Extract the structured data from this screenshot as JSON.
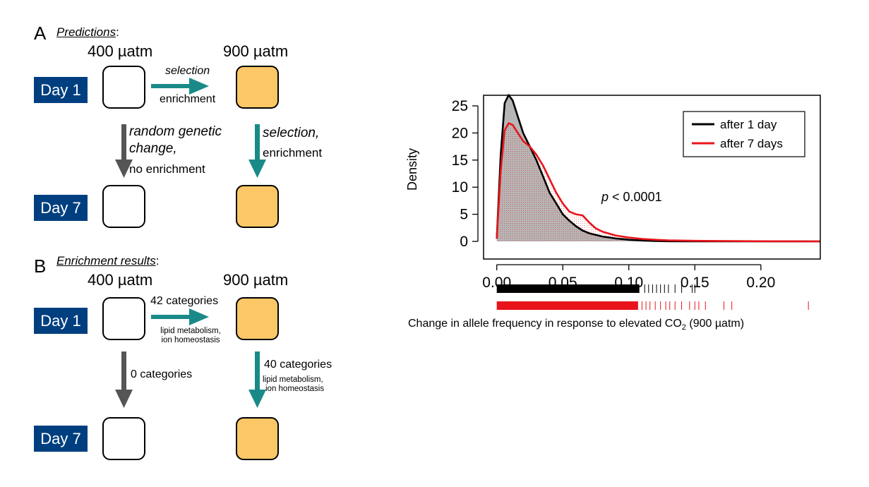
{
  "panel_a": {
    "letter": "A",
    "title": "Predictions",
    "title_suffix": ":",
    "conc_low": "400 µatm",
    "conc_high": "900 µatm",
    "day1": "Day 1",
    "day7": "Day 7",
    "h_arrow_top": "selection",
    "h_arrow_bottom": "enrichment",
    "left_down_line1": "random genetic",
    "left_down_line2": "change,",
    "left_down_line3": "no enrichment",
    "right_down_line1": "selection,",
    "right_down_line2": "enrichment"
  },
  "panel_b": {
    "letter": "B",
    "title": "Enrichment results",
    "title_suffix": ":",
    "conc_low": "400 µatm",
    "conc_high": "900 µatm",
    "day1": "Day 1",
    "day7": "Day 7",
    "h_arrow_top": "42 categories",
    "h_arrow_bottom_line1": "lipid metabolism,",
    "h_arrow_bottom_line2": "ion homeostasis",
    "left_down": "0 categories",
    "right_down_line1": "40 categories",
    "right_down_line2": "lipid metabolism,",
    "right_down_line3": "ion homeostasis"
  },
  "colors": {
    "day_box": "#003f7f",
    "orange_box": "#fbc767",
    "teal_arrow": "#1a8a88",
    "gray_arrow": "#555555",
    "series_1day": "#000000",
    "series_7day": "#e8141a",
    "fill_gray": "#a9a9a9"
  },
  "chart_data": {
    "type": "area",
    "ylabel": "Density",
    "xlabel": "Change in allele frequency in response to elevated CO",
    "xlabel_sub": "2",
    "xlabel_suffix": " (900 µatm)",
    "annotation_p": "p",
    "annotation_rest": " < 0.0001",
    "xlim": [
      -0.01,
      0.245
    ],
    "ylim": [
      0,
      27
    ],
    "x_ticks": [
      0.0,
      0.05,
      0.1,
      0.15,
      0.2
    ],
    "x_tick_labels": [
      "0.00",
      "0.05",
      "0.10",
      "0.15",
      "0.20"
    ],
    "y_ticks": [
      0,
      5,
      10,
      15,
      20,
      25
    ],
    "y_tick_labels": [
      "0",
      "5",
      "10",
      "15",
      "20",
      "25"
    ],
    "legend_position": "top-right",
    "series": [
      {
        "name": "after 1 day",
        "color": "#000000",
        "x": [
          0.0,
          0.003,
          0.006,
          0.009,
          0.012,
          0.016,
          0.02,
          0.025,
          0.03,
          0.035,
          0.04,
          0.045,
          0.05,
          0.055,
          0.06,
          0.065,
          0.07,
          0.08,
          0.09,
          0.1,
          0.11,
          0.12,
          0.13,
          0.15,
          0.2,
          0.245
        ],
        "y": [
          0.5,
          16,
          25.5,
          27,
          26,
          23,
          20,
          17.5,
          15,
          12,
          9,
          7,
          5,
          3.8,
          2.8,
          2.0,
          1.5,
          0.9,
          0.55,
          0.3,
          0.15,
          0.07,
          0.03,
          0.01,
          0.0,
          0.0
        ]
      },
      {
        "name": "after 7 days",
        "color": "#e8141a",
        "x": [
          0.0,
          0.003,
          0.006,
          0.009,
          0.012,
          0.016,
          0.02,
          0.025,
          0.03,
          0.035,
          0.04,
          0.045,
          0.05,
          0.055,
          0.06,
          0.065,
          0.07,
          0.075,
          0.08,
          0.09,
          0.1,
          0.11,
          0.12,
          0.13,
          0.15,
          0.2,
          0.245
        ],
        "y": [
          0.5,
          13,
          20.5,
          21.8,
          21.5,
          20,
          18.5,
          17.5,
          16,
          14,
          11.5,
          9,
          7,
          5.5,
          5,
          4.8,
          3.5,
          2.4,
          1.8,
          1.1,
          0.7,
          0.45,
          0.3,
          0.2,
          0.1,
          0.02,
          0.0
        ]
      }
    ],
    "rug_1day_extra": [
      0.112,
      0.115,
      0.118,
      0.121,
      0.124,
      0.127,
      0.13,
      0.135,
      0.14,
      0.148,
      0.15
    ],
    "rug_7day_extra": [
      0.11,
      0.113,
      0.116,
      0.12,
      0.124,
      0.128,
      0.131,
      0.135,
      0.14,
      0.146,
      0.15,
      0.153,
      0.158,
      0.172,
      0.178,
      0.236
    ]
  }
}
